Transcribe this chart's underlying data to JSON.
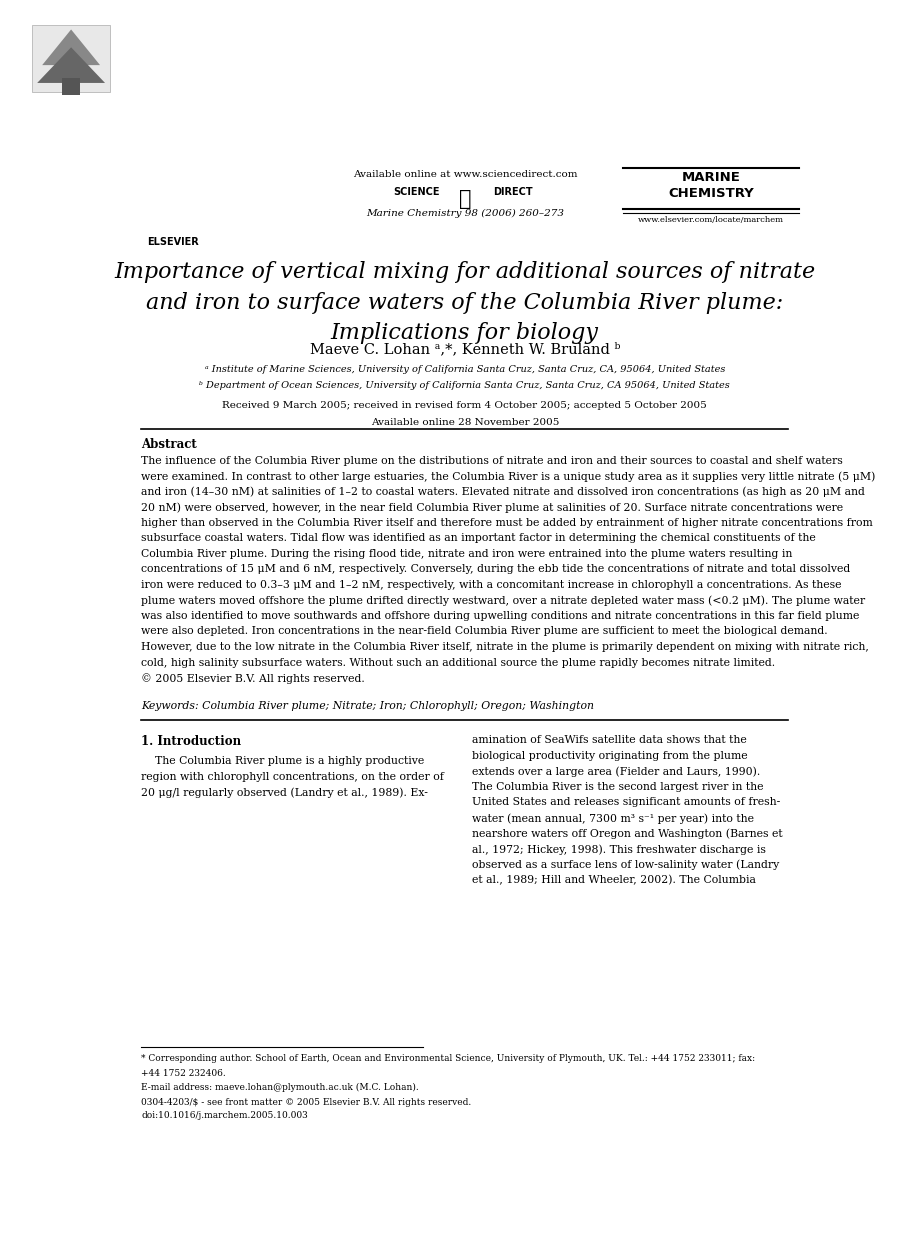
{
  "page_width": 9.07,
  "page_height": 12.38,
  "bg_color": "#ffffff",
  "header": {
    "available_online": "Available online at www.sciencedirect.com",
    "journal_name": "Marine Chemistry 98 (2006) 260–273",
    "website": "www.elsevier.com/locate/marchem",
    "elsevier_label": "ELSEVIER",
    "marine_chemistry_label": "MARINE\nCHEMISTRY"
  },
  "title": {
    "line1": "Importance of vertical mixing for additional sources of nitrate",
    "line2": "and iron to surface waters of the Columbia River plume:",
    "line3": "Implications for biology"
  },
  "authors": "Maeve C. Lohan ᵃ,*, Kenneth W. Bruland ᵇ",
  "affiliations": {
    "a": "ᵃ Institute of Marine Sciences, University of California Santa Cruz, Santa Cruz, CA, 95064, United States",
    "b": "ᵇ Department of Ocean Sciences, University of California Santa Cruz, Santa Cruz, CA 95064, United States"
  },
  "dates": {
    "line1": "Received 9 March 2005; received in revised form 4 October 2005; accepted 5 October 2005",
    "line2": "Available online 28 November 2005"
  },
  "abstract_title": "Abstract",
  "keywords": "Keywords: Columbia River plume; Nitrate; Iron; Chlorophyll; Oregon; Washington",
  "section1_title": "1. Introduction",
  "footnote_star": "* Corresponding author. School of Earth, Ocean and Environmental Science, University of Plymouth, UK. Tel.: +44 1752 233011; fax:",
  "footnote_star2": "+44 1752 232406.",
  "footnote_email": "E-mail address: maeve.lohan@plymouth.ac.uk (M.C. Lohan).",
  "footnote_issn": "0304-4203/$ - see front matter © 2005 Elsevier B.V. All rights reserved.",
  "footnote_doi": "doi:10.1016/j.marchem.2005.10.003",
  "abstract_lines": [
    "The influence of the Columbia River plume on the distributions of nitrate and iron and their sources to coastal and shelf waters",
    "were examined. In contrast to other large estuaries, the Columbia River is a unique study area as it supplies very little nitrate (5 μM)",
    "and iron (14–30 nM) at salinities of 1–2 to coastal waters. Elevated nitrate and dissolved iron concentrations (as high as 20 μM and",
    "20 nM) were observed, however, in the near field Columbia River plume at salinities of 20. Surface nitrate concentrations were",
    "higher than observed in the Columbia River itself and therefore must be added by entrainment of higher nitrate concentrations from",
    "subsurface coastal waters. Tidal flow was identified as an important factor in determining the chemical constituents of the",
    "Columbia River plume. During the rising flood tide, nitrate and iron were entrained into the plume waters resulting in",
    "concentrations of 15 μM and 6 nM, respectively. Conversely, during the ebb tide the concentrations of nitrate and total dissolved",
    "iron were reduced to 0.3–3 μM and 1–2 nM, respectively, with a concomitant increase in chlorophyll a concentrations. As these",
    "plume waters moved offshore the plume drifted directly westward, over a nitrate depleted water mass (<0.2 μM). The plume water",
    "was also identified to move southwards and offshore during upwelling conditions and nitrate concentrations in this far field plume",
    "were also depleted. Iron concentrations in the near-field Columbia River plume are sufficient to meet the biological demand.",
    "However, due to the low nitrate in the Columbia River itself, nitrate in the plume is primarily dependent on mixing with nitrate rich,",
    "cold, high salinity subsurface waters. Without such an additional source the plume rapidly becomes nitrate limited.",
    "© 2005 Elsevier B.V. All rights reserved."
  ],
  "col_left_lines": [
    "    The Columbia River plume is a highly productive",
    "region with chlorophyll concentrations, on the order of",
    "20 μg/l regularly observed (Landry et al., 1989). Ex-"
  ],
  "col_right_lines": [
    "amination of SeaWifs satellite data shows that the",
    "biological productivity originating from the plume",
    "extends over a large area (Fielder and Laurs, 1990).",
    "The Columbia River is the second largest river in the",
    "United States and releases significant amounts of fresh-",
    "water (mean annual, 7300 m³ s⁻¹ per year) into the",
    "nearshore waters off Oregon and Washington (Barnes et",
    "al., 1972; Hickey, 1998). This freshwater discharge is",
    "observed as a surface lens of low-salinity water (Landry",
    "et al., 1989; Hill and Wheeler, 2002). The Columbia"
  ]
}
